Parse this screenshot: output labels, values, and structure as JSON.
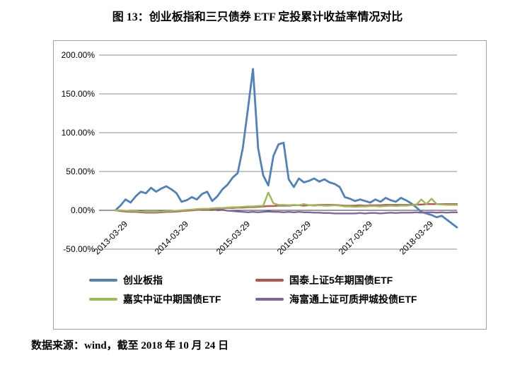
{
  "title": "图 13：创业板指和三只债券 ETF 定投累计收益率情况对比",
  "source_note": "数据来源：wind，截至 2018 年 10 月 24 日",
  "colors": {
    "chinext_blue": "#4F81BD",
    "guotai_red": "#C0504D",
    "jiashi_green": "#9BBB59",
    "haifutong_purple": "#8064A2",
    "gridline": "#8c8c8c",
    "zero_axis": "#333333",
    "frame_border": "#a3a3a3"
  },
  "chart_data": {
    "type": "line",
    "title": "",
    "xlabel": "",
    "ylabel": "",
    "grid": true,
    "legend_position": "bottom",
    "ylim": [
      -50,
      200
    ],
    "y_ticks": [
      "200.00%",
      "150.00%",
      "100.00%",
      "50.00%",
      "0.00%",
      "-50.00%"
    ],
    "x_tick_labels": [
      "2013-03-29",
      "2014-03-29",
      "2015-03-29",
      "2016-03-29",
      "2017-03-29",
      "2018-03-29"
    ],
    "x_end": "2018-10-24",
    "unit": "percent cumulative return",
    "dates": [
      "2013-03",
      "2013-04",
      "2013-05",
      "2013-06",
      "2013-07",
      "2013-08",
      "2013-09",
      "2013-10",
      "2013-11",
      "2013-12",
      "2014-01",
      "2014-02",
      "2014-03",
      "2014-04",
      "2014-05",
      "2014-06",
      "2014-07",
      "2014-08",
      "2014-09",
      "2014-10",
      "2014-11",
      "2014-12",
      "2015-01",
      "2015-02",
      "2015-03",
      "2015-04",
      "2015-05",
      "2015-06",
      "2015-07",
      "2015-08",
      "2015-09",
      "2015-10",
      "2015-11",
      "2015-12",
      "2016-01",
      "2016-02",
      "2016-03",
      "2016-04",
      "2016-05",
      "2016-06",
      "2016-07",
      "2016-08",
      "2016-09",
      "2016-10",
      "2016-11",
      "2016-12",
      "2017-01",
      "2017-02",
      "2017-03",
      "2017-04",
      "2017-05",
      "2017-06",
      "2017-07",
      "2017-08",
      "2017-09",
      "2017-10",
      "2017-11",
      "2017-12",
      "2018-01",
      "2018-02",
      "2018-03",
      "2018-04",
      "2018-05",
      "2018-06",
      "2018-07",
      "2018-08",
      "2018-09",
      "2018-10"
    ],
    "series": [
      {
        "name": "创业板指",
        "color": "#4F81BD",
        "values": [
          0,
          6,
          14,
          10,
          18,
          24,
          22,
          29,
          24,
          28,
          31,
          27,
          22,
          11,
          13,
          17,
          14,
          21,
          24,
          12,
          18,
          27,
          33,
          42,
          48,
          80,
          130,
          182,
          80,
          45,
          32,
          70,
          85,
          87,
          40,
          30,
          41,
          36,
          38,
          41,
          37,
          40,
          36,
          34,
          30,
          17,
          15,
          12,
          14,
          12,
          10,
          14,
          11,
          16,
          13,
          11,
          16,
          13,
          9,
          4,
          -2,
          -4,
          -6,
          -9,
          -7,
          -12,
          -17,
          -22
        ]
      },
      {
        "name": "国泰上证5年期国债ETF",
        "color": "#C0504D",
        "values": [
          0,
          -1,
          -1.5,
          -2,
          -2,
          -2.5,
          -3,
          -3,
          -3,
          -2.5,
          -2,
          -2,
          -1.5,
          -1,
          -0.5,
          0,
          0.5,
          1,
          1,
          1.5,
          2,
          2.5,
          3,
          3,
          3.5,
          3.5,
          4,
          4,
          4.5,
          5,
          5.5,
          5.5,
          6,
          6,
          6,
          6.5,
          6.5,
          6,
          6.5,
          6.5,
          7,
          7,
          7,
          7,
          6.5,
          6,
          6,
          6,
          6.5,
          6,
          6.5,
          6.5,
          6.5,
          7,
          7,
          7,
          7,
          7,
          7,
          7.5,
          7.5,
          8,
          8,
          8,
          8,
          8,
          8,
          8
        ]
      },
      {
        "name": "嘉实中证中期国债ETF",
        "color": "#9BBB59",
        "values": [
          0,
          0,
          -0.5,
          -1,
          -1,
          -1.5,
          -2,
          -2,
          -2,
          -1.5,
          -1,
          -1,
          -0.5,
          0,
          0.5,
          1,
          1.5,
          2,
          2,
          2.5,
          3,
          3,
          3.5,
          4,
          4,
          4.5,
          5,
          5,
          5.5,
          6,
          23,
          9,
          7,
          7,
          6.5,
          7,
          6.5,
          8,
          6.5,
          6,
          6.5,
          6,
          6,
          6.5,
          6,
          5,
          5,
          4.5,
          5,
          5,
          5.5,
          5.5,
          5,
          5.5,
          6,
          5.5,
          6,
          6,
          6.5,
          7,
          14,
          8,
          15,
          8,
          7.5,
          7,
          7,
          7
        ]
      },
      {
        "name": "海富通上证可质押城投债ETF",
        "color": "#8064A2",
        "values": [
          null,
          null,
          null,
          null,
          null,
          null,
          null,
          null,
          null,
          null,
          null,
          null,
          null,
          null,
          null,
          null,
          null,
          null,
          null,
          null,
          0,
          0.5,
          -0.5,
          -1,
          -1.5,
          -2,
          -2.5,
          -2,
          -2.5,
          -2,
          -1.5,
          -2,
          -2,
          -2.5,
          -2,
          -2.5,
          -2,
          -2.5,
          -2.5,
          -3,
          -3,
          -3.5,
          -3.5,
          -4,
          -4,
          -4,
          -4,
          -4,
          -3.5,
          -4,
          -3.5,
          -3.5,
          -4,
          -3.5,
          -3,
          -3.5,
          -3,
          -3,
          -3,
          -2.5,
          -3,
          -2.5,
          -2.5,
          -3,
          -2.5,
          -3,
          -2.5,
          -2.5
        ]
      }
    ]
  }
}
